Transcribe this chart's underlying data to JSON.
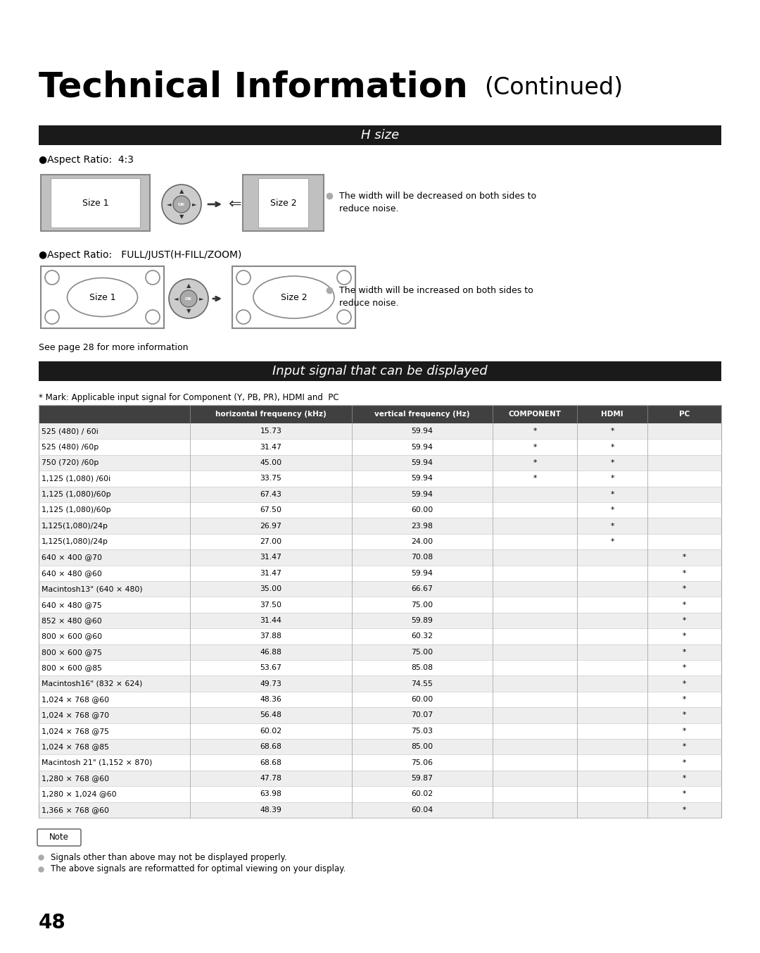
{
  "title_main": "Technical Information",
  "title_continued": "(Continued)",
  "section1_title": "H size",
  "aspect1_label": "●Aspect Ratio:  4:3",
  "aspect2_label": "●Aspect Ratio:   FULL/JUST(H-FILL/ZOOM)",
  "size1_label": "Size 1",
  "size2_label": "Size 2",
  "desc1_line1": "The width will be decreased on both sides to",
  "desc1_line2": "reduce noise.",
  "desc2_line1": "The width will be increased on both sides to",
  "desc2_line2": "reduce noise.",
  "see_page": "See page 28 for more information",
  "section2_title": "Input signal that can be displayed",
  "mark_note": "* Mark: Applicable input signal for Component (Y, PB, PR), HDMI and  PC",
  "col_headers": [
    "",
    "horizontal frequency (kHz)",
    "vertical frequency (Hz)",
    "COMPONENT",
    "HDMI",
    "PC"
  ],
  "table_rows": [
    [
      "525 (480) / 60i",
      "15.73",
      "59.94",
      "*",
      "*",
      ""
    ],
    [
      "525 (480) /60p",
      "31.47",
      "59.94",
      "*",
      "*",
      ""
    ],
    [
      "750 (720) /60p",
      "45.00",
      "59.94",
      "*",
      "*",
      ""
    ],
    [
      "1,125 (1,080) /60i",
      "33.75",
      "59.94",
      "*",
      "*",
      ""
    ],
    [
      "1,125 (1,080)/60p",
      "67.43",
      "59.94",
      "",
      "*",
      ""
    ],
    [
      "1,125 (1,080)/60p",
      "67.50",
      "60.00",
      "",
      "*",
      ""
    ],
    [
      "1,125(1,080)/24p",
      "26.97",
      "23.98",
      "",
      "*",
      ""
    ],
    [
      "1,125(1,080)/24p",
      "27.00",
      "24.00",
      "",
      "*",
      ""
    ],
    [
      "640 × 400 @70",
      "31.47",
      "70.08",
      "",
      "",
      "*"
    ],
    [
      "640 × 480 @60",
      "31.47",
      "59.94",
      "",
      "",
      "*"
    ],
    [
      "Macintosh13\" (640 × 480)",
      "35.00",
      "66.67",
      "",
      "",
      "*"
    ],
    [
      "640 × 480 @75",
      "37.50",
      "75.00",
      "",
      "",
      "*"
    ],
    [
      "852 × 480 @60",
      "31.44",
      "59.89",
      "",
      "",
      "*"
    ],
    [
      "800 × 600 @60",
      "37.88",
      "60.32",
      "",
      "",
      "*"
    ],
    [
      "800 × 600 @75",
      "46.88",
      "75.00",
      "",
      "",
      "*"
    ],
    [
      "800 × 600 @85",
      "53.67",
      "85.08",
      "",
      "",
      "*"
    ],
    [
      "Macintosh16\" (832 × 624)",
      "49.73",
      "74.55",
      "",
      "",
      "*"
    ],
    [
      "1,024 × 768 @60",
      "48.36",
      "60.00",
      "",
      "",
      "*"
    ],
    [
      "1,024 × 768 @70",
      "56.48",
      "70.07",
      "",
      "",
      "*"
    ],
    [
      "1,024 × 768 @75",
      "60.02",
      "75.03",
      "",
      "",
      "*"
    ],
    [
      "1,024 × 768 @85",
      "68.68",
      "85.00",
      "",
      "",
      "*"
    ],
    [
      "Macintosh 21\" (1,152 × 870)",
      "68.68",
      "75.06",
      "",
      "",
      "*"
    ],
    [
      "1,280 × 768 @60",
      "47.78",
      "59.87",
      "",
      "",
      "*"
    ],
    [
      "1,280 × 1,024 @60",
      "63.98",
      "60.02",
      "",
      "",
      "*"
    ],
    [
      "1,366 × 768 @60",
      "48.39",
      "60.04",
      "",
      "",
      "*"
    ]
  ],
  "note_text1": "Signals other than above may not be displayed properly.",
  "note_text2": "The above signals are reformatted for optimal viewing on your display.",
  "page_number": "48",
  "bg_color": "#ffffff",
  "header_bar_color": "#1a1a1a",
  "header_text_color": "#ffffff",
  "row_alt_color": "#eeeeee",
  "row_color": "#ffffff",
  "table_border_color": "#aaaaaa"
}
